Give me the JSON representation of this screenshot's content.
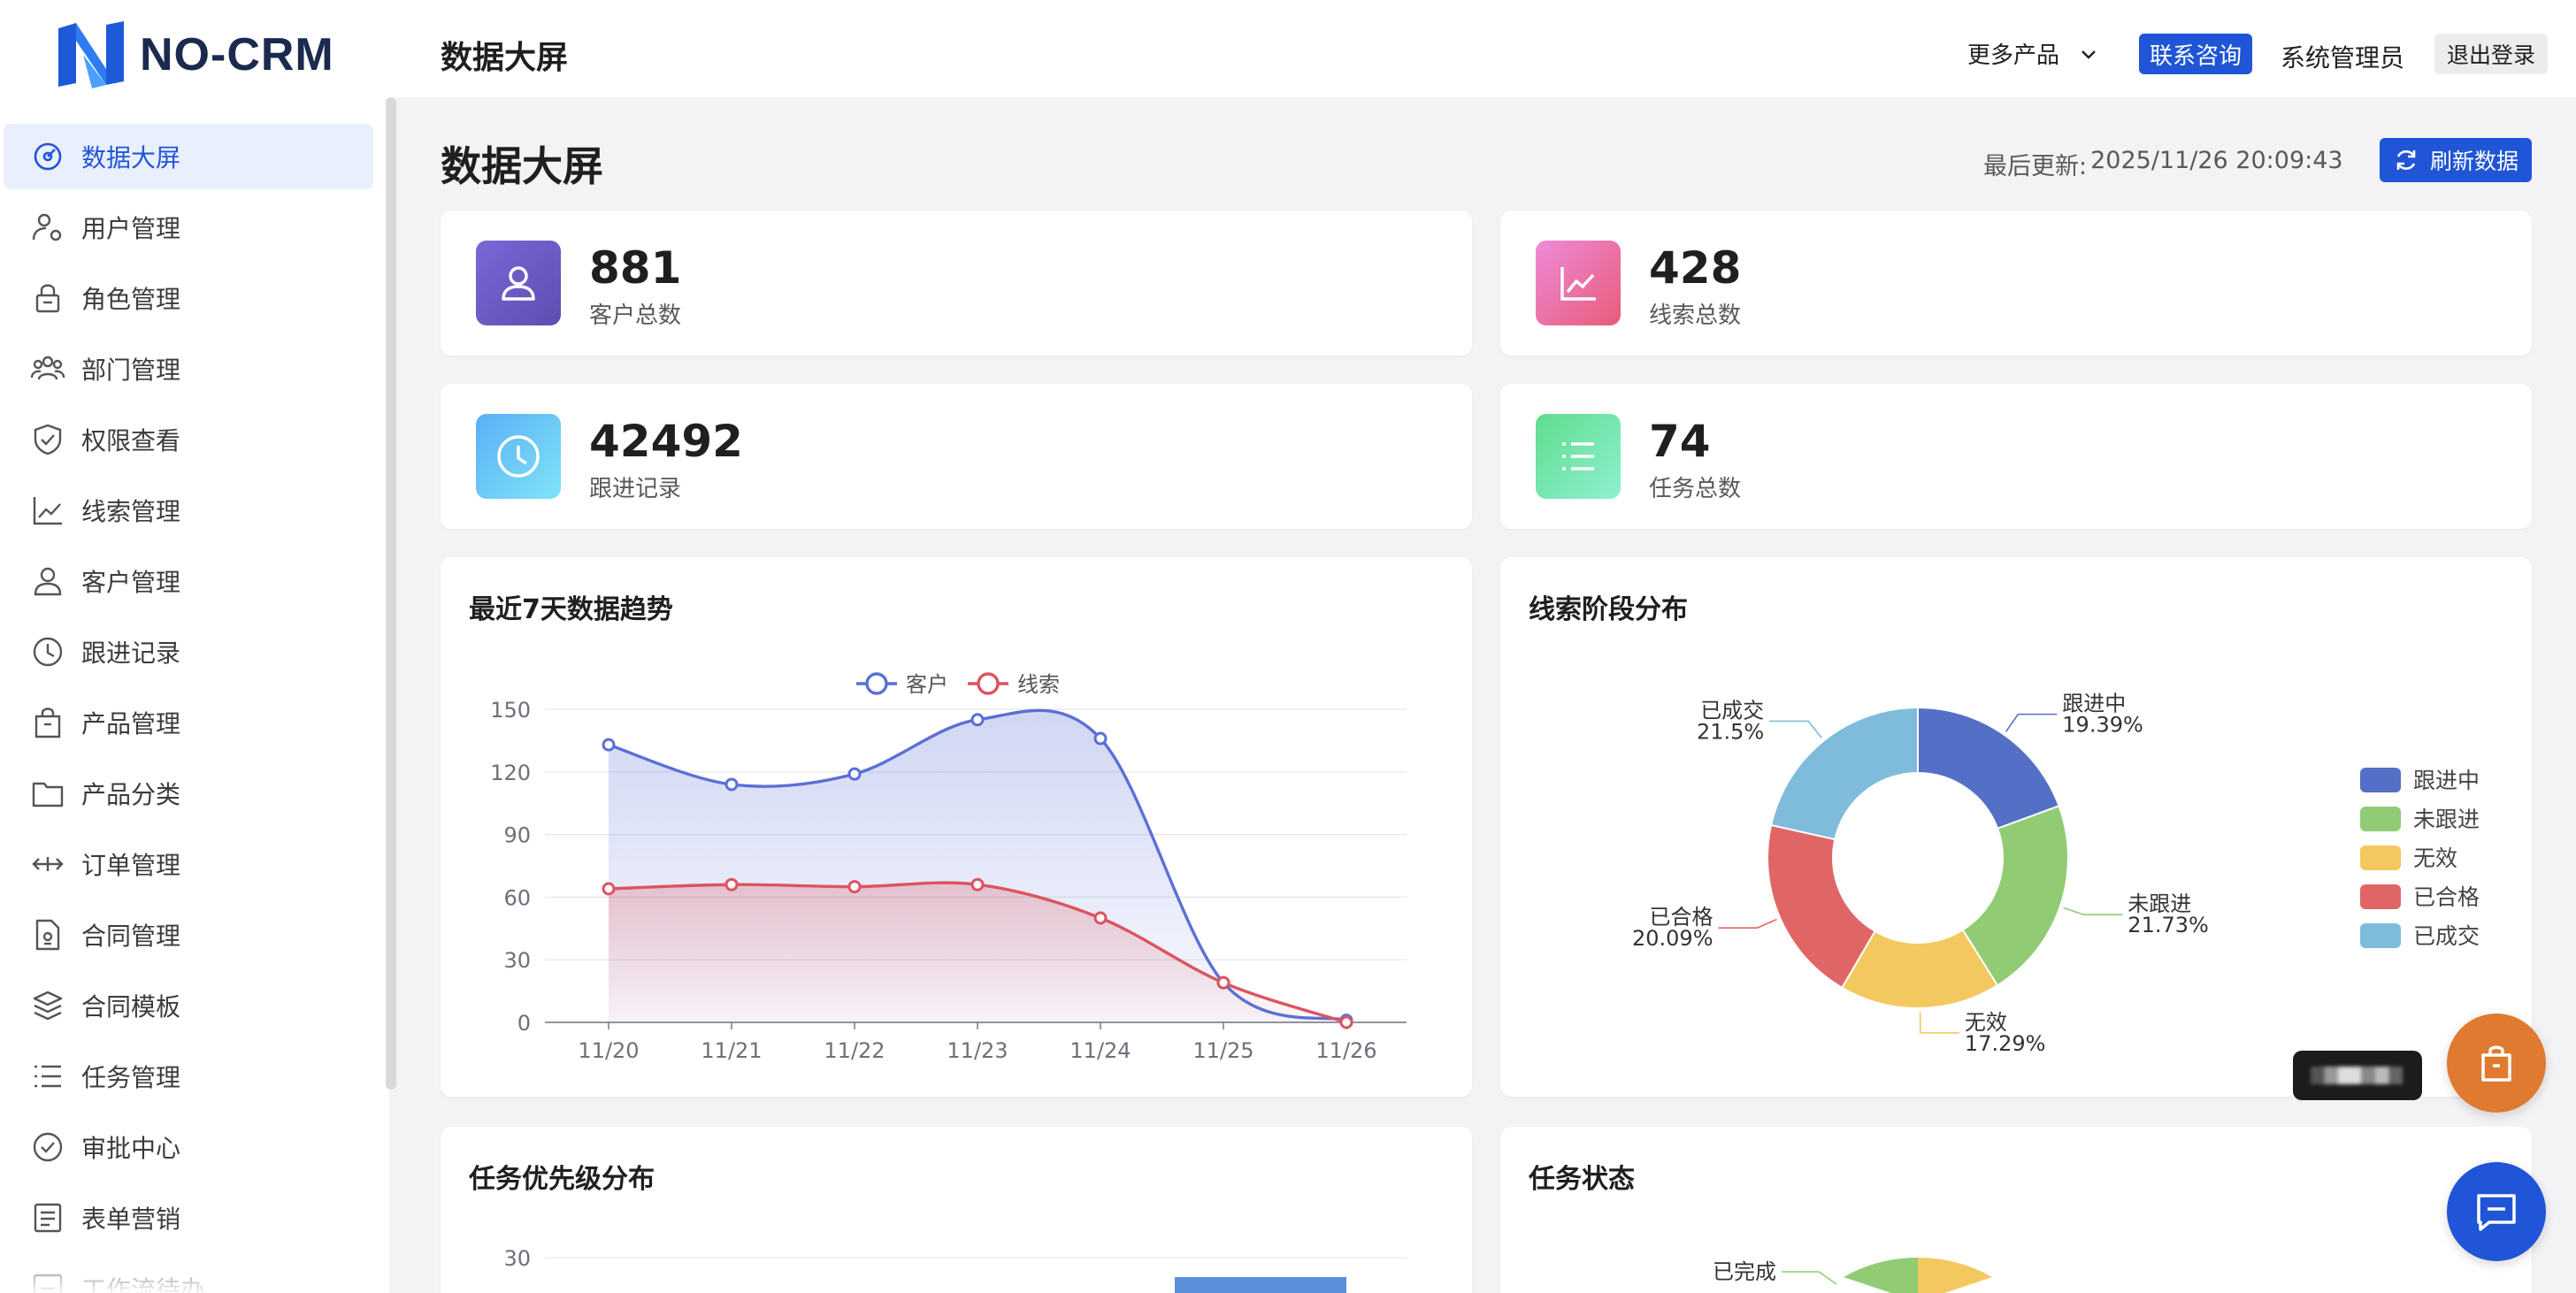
{
  "brand": {
    "name": "NO-CRM"
  },
  "header": {
    "title": "数据大屏",
    "more_products": "更多产品",
    "contact": "联系咨询",
    "admin": "系统管理员",
    "logout": "退出登录"
  },
  "sidebar": {
    "items": [
      {
        "label": "数据大屏",
        "icon": "dashboard-icon",
        "active": true
      },
      {
        "label": "用户管理",
        "icon": "user-gear-icon"
      },
      {
        "label": "角色管理",
        "icon": "lock-icon"
      },
      {
        "label": "部门管理",
        "icon": "team-icon"
      },
      {
        "label": "权限查看",
        "icon": "shield-check-icon"
      },
      {
        "label": "线索管理",
        "icon": "line-chart-icon"
      },
      {
        "label": "客户管理",
        "icon": "user-icon"
      },
      {
        "label": "跟进记录",
        "icon": "clock-icon"
      },
      {
        "label": "产品管理",
        "icon": "shopping-bag-icon"
      },
      {
        "label": "产品分类",
        "icon": "folder-icon"
      },
      {
        "label": "订单管理",
        "icon": "arrows-horizontal-icon"
      },
      {
        "label": "合同管理",
        "icon": "document-icon"
      },
      {
        "label": "合同模板",
        "icon": "layers-icon"
      },
      {
        "label": "任务管理",
        "icon": "list-icon"
      },
      {
        "label": "审批中心",
        "icon": "check-circle-icon"
      },
      {
        "label": "表单营销",
        "icon": "form-icon"
      },
      {
        "label": "工作流待办",
        "icon": "workflow-icon"
      }
    ]
  },
  "main": {
    "title": "数据大屏",
    "last_update_label": "最后更新:",
    "last_update_value": "2025/11/26 20:09:43",
    "refresh_label": "刷新数据"
  },
  "stats": [
    {
      "value": "881",
      "label": "客户总数",
      "icon": "user-icon",
      "color_from": "#7a68d8",
      "color_to": "#5c4fb0"
    },
    {
      "value": "428",
      "label": "线索总数",
      "icon": "line-chart-icon",
      "color_from": "#ee8bd9",
      "color_to": "#e85b78"
    },
    {
      "value": "42492",
      "label": "跟进记录",
      "icon": "clock-icon",
      "color_from": "#5aaef5",
      "color_to": "#7ee4f7"
    },
    {
      "value": "74",
      "label": "任务总数",
      "icon": "list-icon",
      "color_from": "#5fdc8f",
      "color_to": "#8ff0cf"
    }
  ],
  "panels": {
    "trend": "最近7天数据趋势",
    "stage": "线索阶段分布",
    "priority": "任务优先级分布",
    "status": "任务状态"
  },
  "chart_data": [
    {
      "type": "line",
      "title": "最近7天数据趋势",
      "x": [
        "11/20",
        "11/21",
        "11/22",
        "11/23",
        "11/24",
        "11/25",
        "11/26"
      ],
      "ylim": [
        0,
        150
      ],
      "yticks": [
        "0",
        "30",
        "60",
        "90",
        "120",
        "150"
      ],
      "legend_position": "top-center",
      "grid": true,
      "series": [
        {
          "name": "客户",
          "values": [
            133,
            114,
            119,
            145,
            136,
            19,
            1
          ],
          "color": "#5b6fd6"
        },
        {
          "name": "线索",
          "values": [
            64,
            66,
            65,
            66,
            50,
            19,
            0
          ],
          "color": "#dc5460"
        }
      ]
    },
    {
      "type": "pie",
      "title": "线索阶段分布",
      "legend_position": "right",
      "slices": [
        {
          "name": "跟进中",
          "value": 19.39,
          "label": "19.39%",
          "color": "#5470c6"
        },
        {
          "name": "未跟进",
          "value": 21.73,
          "label": "21.73%",
          "color": "#91cc75"
        },
        {
          "name": "无效",
          "value": 17.29,
          "label": "17.29%",
          "color": "#f3c85f"
        },
        {
          "name": "已合格",
          "value": 20.09,
          "label": "20.09%",
          "color": "#e06666"
        },
        {
          "name": "已成交",
          "value": 21.5,
          "label": "21.5%",
          "color": "#7fbcdc"
        }
      ]
    },
    {
      "type": "bar",
      "title": "任务优先级分布",
      "yticks": [
        "30"
      ]
    },
    {
      "type": "pie",
      "title": "任务状态",
      "visible_labels": [
        "已完成"
      ]
    }
  ]
}
